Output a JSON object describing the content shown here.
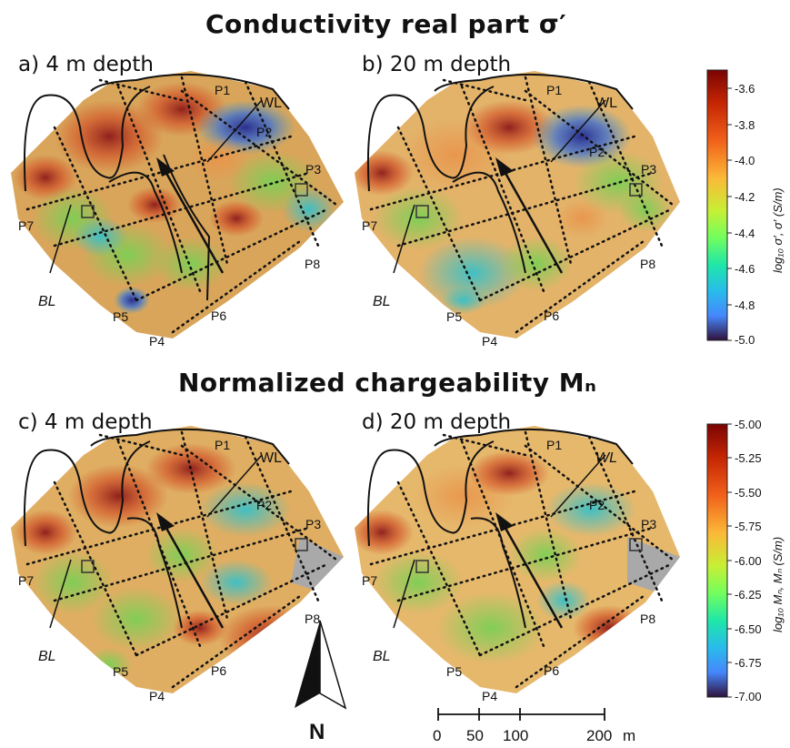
{
  "titles": {
    "top": "Conductivity real part σ′",
    "bottom": "Normalized chargeability Mₙ"
  },
  "panels": [
    {
      "id": "a",
      "label": "a) 4 m depth"
    },
    {
      "id": "b",
      "label": "b) 20 m depth"
    },
    {
      "id": "c",
      "label": "c) 4 m depth"
    },
    {
      "id": "d",
      "label": "d) 20 m depth"
    }
  ],
  "profiles": {
    "p1": "P1",
    "p2": "P2",
    "p3": "P3",
    "p4": "P4",
    "p5": "P5",
    "p6": "P6",
    "p7": "P7",
    "p8": "P8"
  },
  "markers": {
    "wl": "WL",
    "bl": "BL"
  },
  "colorbar_top": {
    "label": "log₁₀ σ′, σ′ (S/m)",
    "ticks": [
      "-3.6",
      "-3.8",
      "-4.0",
      "-4.2",
      "-4.4",
      "-4.6",
      "-4.8",
      "-5.0"
    ]
  },
  "colorbar_bottom": {
    "label": "log₁₀ Mₙ, Mₙ (S/m)",
    "ticks": [
      "-5.00",
      "-5.25",
      "-5.50",
      "-5.75",
      "-6.00",
      "-6.25",
      "-6.50",
      "-6.75",
      "-7.00"
    ]
  },
  "north": "N",
  "scalebar": {
    "ticks": [
      "0",
      "50",
      "100",
      "200"
    ],
    "unit": "m"
  },
  "colors": {
    "high": "#8b1a1a",
    "mid": "#9acd32",
    "low": "#2a1f6e",
    "grey_zone": "#a9a9a9"
  }
}
